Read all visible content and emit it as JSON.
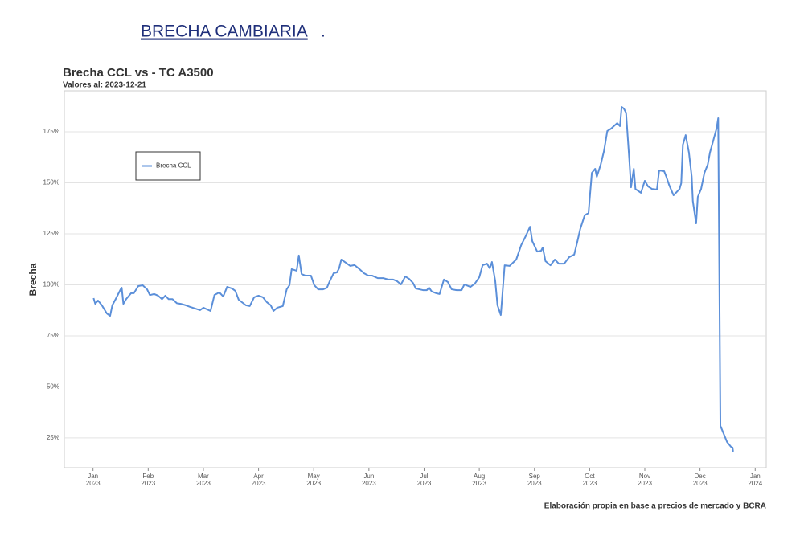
{
  "header": {
    "title": "BRECHA CAMBIARIA",
    "title_suffix": "."
  },
  "chart_data": {
    "type": "line",
    "title": "Brecha CCL vs - TC A3500",
    "subtitle": "Valores al: 2023-12-21",
    "y_label": "Brecha",
    "caption": "Elaboración propia en base a precios de mercado y BCRA",
    "legend_position": "upper left",
    "grid": true,
    "xlim": [
      -0.52,
      12.2
    ],
    "ylim": [
      10.4,
      195.1
    ],
    "xticks": [
      {
        "value": 0,
        "label": "Jan\n2023"
      },
      {
        "value": 1,
        "label": "Feb\n2023"
      },
      {
        "value": 2,
        "label": "Mar\n2023"
      },
      {
        "value": 3,
        "label": "Apr\n2023"
      },
      {
        "value": 4,
        "label": "May\n2023"
      },
      {
        "value": 5,
        "label": "Jun\n2023"
      },
      {
        "value": 6,
        "label": "Jul\n2023"
      },
      {
        "value": 7,
        "label": "Aug\n2023"
      },
      {
        "value": 8,
        "label": "Sep\n2023"
      },
      {
        "value": 9,
        "label": "Oct\n2023"
      },
      {
        "value": 10,
        "label": "Nov\n2023"
      },
      {
        "value": 11,
        "label": "Dec\n2023"
      },
      {
        "value": 12,
        "label": "Jan\n2024"
      }
    ],
    "yticks": [
      {
        "value": 25,
        "label": "25%"
      },
      {
        "value": 50,
        "label": "50%"
      },
      {
        "value": 75,
        "label": "75%"
      },
      {
        "value": 100,
        "label": "100%"
      },
      {
        "value": 125,
        "label": "125%"
      },
      {
        "value": 150,
        "label": "150%"
      },
      {
        "value": 175,
        "label": "175%"
      }
    ],
    "x": [
      0.01,
      0.04,
      0.09,
      0.16,
      0.25,
      0.31,
      0.35,
      0.41,
      0.5,
      0.52,
      0.55,
      0.6,
      0.69,
      0.74,
      0.82,
      0.9,
      0.98,
      1.03,
      1.11,
      1.18,
      1.25,
      1.31,
      1.37,
      1.44,
      1.52,
      1.59,
      1.68,
      1.76,
      1.85,
      1.94,
      2.0,
      2.13,
      2.2,
      2.29,
      2.36,
      2.43,
      2.52,
      2.58,
      2.64,
      2.77,
      2.84,
      2.92,
      3.0,
      3.08,
      3.15,
      3.22,
      3.27,
      3.34,
      3.44,
      3.51,
      3.56,
      3.6,
      3.69,
      3.73,
      3.78,
      3.85,
      3.95,
      4.01,
      4.08,
      4.17,
      4.24,
      4.29,
      4.36,
      4.42,
      4.46,
      4.5,
      4.58,
      4.66,
      4.74,
      4.83,
      4.91,
      4.99,
      5.06,
      5.16,
      5.26,
      5.35,
      5.44,
      5.51,
      5.58,
      5.66,
      5.73,
      5.8,
      5.85,
      5.98,
      6.05,
      6.09,
      6.14,
      6.22,
      6.28,
      6.36,
      6.43,
      6.5,
      6.59,
      6.68,
      6.73,
      6.84,
      6.92,
      7.0,
      7.06,
      7.14,
      7.19,
      7.23,
      7.29,
      7.33,
      7.39,
      7.46,
      7.55,
      7.67,
      7.76,
      7.84,
      7.92,
      7.96,
      8.05,
      8.12,
      8.15,
      8.2,
      8.29,
      8.37,
      8.44,
      8.54,
      8.63,
      8.72,
      8.78,
      8.83,
      8.91,
      8.98,
      9.04,
      9.1,
      9.13,
      9.2,
      9.26,
      9.32,
      9.39,
      9.5,
      9.55,
      9.58,
      9.62,
      9.66,
      9.72,
      9.75,
      9.8,
      9.83,
      9.93,
      10.0,
      10.06,
      10.13,
      10.22,
      10.26,
      10.35,
      10.39,
      10.44,
      10.52,
      10.63,
      10.66,
      10.69,
      10.74,
      10.8,
      10.85,
      10.87,
      10.93,
      10.96,
      11.02,
      11.08,
      11.14,
      11.18,
      11.24,
      11.3,
      11.33,
      11.37,
      11.43,
      11.49,
      11.56,
      11.59,
      11.6
    ],
    "series": [
      {
        "name": "Brecha CCL",
        "color": "#5b8fd9",
        "values": [
          93.5,
          90.7,
          92.3,
          90,
          86,
          84.8,
          90,
          93,
          97.8,
          98.6,
          90.7,
          93,
          95.9,
          95.9,
          99.4,
          99.8,
          97.8,
          95,
          95.5,
          94.7,
          93,
          94.7,
          93,
          93,
          91,
          90.7,
          90,
          89.2,
          88.4,
          87.6,
          88.8,
          87.2,
          95,
          96.3,
          94.3,
          99,
          98.2,
          97,
          92.7,
          90,
          89.6,
          93.9,
          94.7,
          93.9,
          91.5,
          90,
          87.2,
          88.8,
          89.6,
          97.8,
          99.8,
          107.7,
          106.9,
          114.4,
          105.3,
          104.5,
          104.5,
          99.8,
          97.8,
          97.8,
          98.6,
          101.8,
          105.7,
          106.1,
          108.1,
          112.4,
          110.9,
          109.3,
          109.7,
          107.7,
          105.7,
          104.5,
          104.5,
          103.3,
          103.3,
          102.6,
          102.6,
          101.8,
          100.2,
          104.1,
          102.9,
          100.9,
          98.2,
          97.4,
          97.4,
          98.6,
          96.7,
          95.9,
          95.5,
          102.6,
          101.4,
          97.8,
          97.4,
          97.4,
          100.2,
          99,
          100.6,
          103.7,
          109.6,
          110.4,
          108.1,
          111.2,
          101.8,
          90,
          85.2,
          109.6,
          109.3,
          112.4,
          119.5,
          123.8,
          128.5,
          121.5,
          116.3,
          116.7,
          118.3,
          111.6,
          109.6,
          112.4,
          110.4,
          110.4,
          113.6,
          114.8,
          121.5,
          127.4,
          134.1,
          135.2,
          154.9,
          156.9,
          153,
          158.9,
          165.6,
          175.4,
          176.6,
          179.3,
          177.8,
          187.2,
          186.4,
          184.4,
          160.8,
          147.8,
          156.9,
          147,
          145.1,
          151,
          148.2,
          147,
          146.7,
          156.1,
          155.7,
          153,
          149,
          143.9,
          147,
          149.8,
          168.7,
          173.4,
          164.8,
          153,
          141.1,
          130.1,
          143.1,
          147,
          154.9,
          158.9,
          164.8,
          170.7,
          176.6,
          181.7,
          30.9,
          27,
          23,
          20.7,
          20.3,
          18.3
        ]
      }
    ]
  }
}
